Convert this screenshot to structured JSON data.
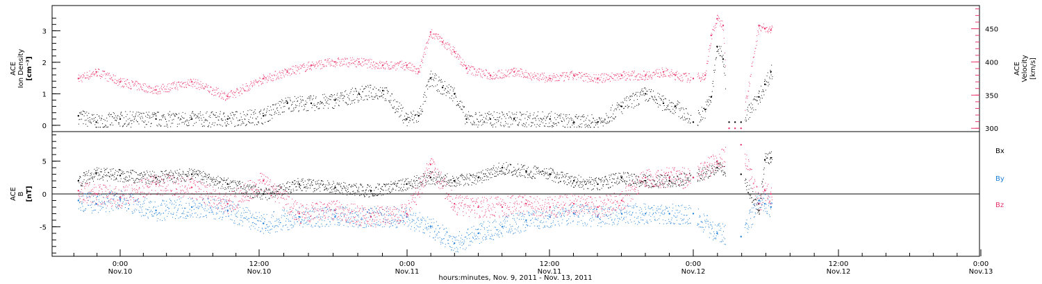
{
  "colors": {
    "black": "#000000",
    "velocity": "#e8336b",
    "bx": "#000000",
    "by": "#1e7fd8",
    "bz": "#e8336b"
  },
  "top_panel": {
    "left_label": [
      "ACE",
      "Ion Density",
      "[cm⁻³]"
    ],
    "right_label": [
      "ACE",
      "Velocity",
      "[km/s]"
    ],
    "left_ticks": [
      "0",
      "1",
      "2",
      "3"
    ],
    "right_ticks": [
      "300",
      "350",
      "400",
      "450"
    ]
  },
  "bottom_panel": {
    "left_label": [
      "ACE",
      "B",
      "[nT]"
    ],
    "left_ticks": [
      "-5",
      "0",
      "5"
    ],
    "legend": [
      "Bx",
      "By",
      "Bz"
    ]
  },
  "xaxis": {
    "ticks": [
      {
        "time": "0:00",
        "date": "Nov.10"
      },
      {
        "time": "12:00",
        "date": "Nov.10"
      },
      {
        "time": "0:00",
        "date": "Nov.11"
      },
      {
        "time": "12:00",
        "date": "Nov.11"
      },
      {
        "time": "0:00",
        "date": "Nov.12"
      },
      {
        "time": "12:00",
        "date": "Nov.12"
      },
      {
        "time": "0:00",
        "date": "Nov.13"
      }
    ],
    "title": "hours:minutes, Nov. 9, 2011 - Nov. 13, 2011"
  },
  "chart_data": [
    {
      "type": "scatter",
      "title": "",
      "xlabel": "hours:minutes, Nov. 9, 2011 - Nov. 13, 2011",
      "x_range_hours_from_nov9_0000": [
        20.5,
        72
      ],
      "series": [
        {
          "name": "ACE Ion Density [cm⁻³]",
          "axis": "left",
          "ylim": [
            -0.2,
            3.8
          ],
          "x_hours": [
            20.5,
            22,
            24,
            27,
            30,
            33,
            36,
            38,
            40,
            42,
            44,
            46,
            48,
            49,
            50,
            51,
            52,
            53,
            55,
            57,
            60,
            62,
            64,
            66,
            68,
            69.5,
            70.5,
            72,
            73,
            73.5,
            74,
            74.5,
            75,
            75.5,
            76,
            77.5,
            78,
            78.5
          ],
          "y": [
            0.3,
            0.1,
            0.2,
            0.2,
            0.2,
            0.2,
            0.3,
            0.7,
            0.7,
            0.8,
            1.0,
            1.1,
            0.2,
            0.3,
            1.5,
            1.2,
            1.0,
            0.2,
            0.2,
            0.2,
            0.2,
            0.1,
            0.1,
            0.6,
            1.0,
            0.7,
            0.6,
            0.1,
            0.5,
            0.9,
            2.5,
            2.1,
            0.1,
            0.1,
            0.1,
            0.9,
            1.3,
            1.7
          ]
        },
        {
          "name": "ACE Velocity [km/s]",
          "axis": "right",
          "ylim": [
            295,
            485
          ],
          "x_hours": [
            20.5,
            22,
            24,
            27,
            30,
            33,
            36,
            38,
            40,
            42,
            44,
            46,
            48,
            49,
            50,
            51,
            52,
            53,
            55,
            57,
            60,
            62,
            64,
            66,
            68,
            69.5,
            70.5,
            72,
            73,
            73.5,
            74,
            74.5,
            75,
            75.5,
            76,
            77.5,
            78,
            78.5
          ],
          "y": [
            375,
            385,
            370,
            358,
            370,
            348,
            375,
            385,
            395,
            400,
            400,
            395,
            395,
            385,
            445,
            430,
            415,
            390,
            380,
            385,
            375,
            380,
            375,
            380,
            380,
            385,
            380,
            375,
            380,
            440,
            465,
            455,
            300,
            300,
            300,
            455,
            450,
            448
          ]
        }
      ]
    },
    {
      "type": "scatter",
      "title": "",
      "xlabel": "hours:minutes, Nov. 9, 2011 - Nov. 13, 2011",
      "ylim": [
        -9.5,
        9.5
      ],
      "series": [
        {
          "name": "Bx",
          "x_hours": [
            20.5,
            22,
            24,
            27,
            30,
            33,
            36,
            39,
            42,
            45,
            48,
            50,
            52,
            54,
            56,
            58,
            60,
            62,
            64,
            66,
            68,
            70,
            72,
            74,
            76,
            77.5,
            78,
            78.5
          ],
          "y": [
            2.0,
            3.2,
            2.8,
            2.5,
            3.0,
            1.5,
            0.0,
            1.5,
            1.0,
            0.5,
            1.5,
            2.5,
            2.0,
            2.5,
            4.0,
            3.5,
            3.0,
            2.0,
            1.5,
            2.5,
            2.0,
            2.0,
            2.5,
            4.0,
            3.0,
            -2.5,
            5.2,
            5.5
          ]
        },
        {
          "name": "By",
          "x_hours": [
            20.5,
            22,
            24,
            27,
            30,
            33,
            36,
            39,
            42,
            45,
            48,
            50,
            52,
            54,
            56,
            58,
            60,
            62,
            64,
            66,
            68,
            70,
            72,
            74,
            76,
            77.5,
            78,
            78.5
          ],
          "y": [
            -1.0,
            -1.5,
            -0.8,
            -2.5,
            -2.0,
            -2.5,
            -4.5,
            -3.5,
            -3.5,
            -3.5,
            -3.5,
            -5.0,
            -7.5,
            -6.0,
            -5.0,
            -4.0,
            -3.5,
            -3.0,
            -3.5,
            -3.0,
            -3.0,
            -3.0,
            -3.0,
            -6.0,
            -6.5,
            -1.0,
            -1.5,
            -2.0
          ]
        },
        {
          "name": "Bz",
          "x_hours": [
            20.5,
            22,
            24,
            27,
            30,
            33,
            36,
            39,
            42,
            45,
            48,
            50,
            52,
            54,
            56,
            58,
            60,
            62,
            64,
            66,
            68,
            70,
            72,
            74,
            76,
            77.5,
            78,
            78.5
          ],
          "y": [
            0.5,
            0.0,
            -0.5,
            1.5,
            1.0,
            -1.5,
            2.0,
            -3.0,
            -2.5,
            -3.5,
            -3.0,
            4.5,
            -1.5,
            -2.0,
            -2.0,
            -1.5,
            -2.0,
            -1.5,
            -2.0,
            -1.0,
            2.5,
            2.5,
            2.5,
            5.0,
            7.5,
            -1.5,
            0.5,
            0.0
          ]
        }
      ]
    }
  ]
}
